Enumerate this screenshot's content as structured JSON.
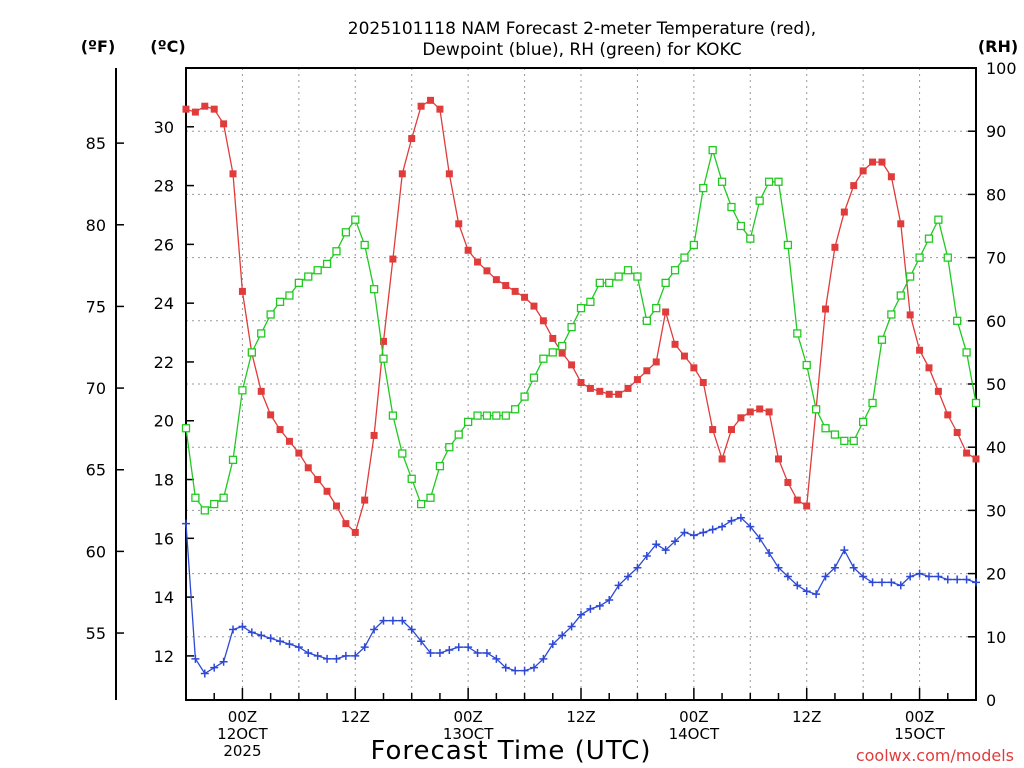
{
  "chart_data": {
    "type": "line",
    "title_line1": "2025101118 NAM Forecast 2-meter Temperature (red),",
    "title_line2": "Dewpoint (blue), RH (green) for KOKC",
    "xlabel": "Forecast Time (UTC)",
    "credit": "coolwx.com/models",
    "unit_f": "(ºF)",
    "unit_c": "(ºC)",
    "unit_rh": "(RH)",
    "x_hours_range": [
      18,
      102
    ],
    "ylim_c": [
      10.5,
      32.0
    ],
    "ylim_rh": [
      0,
      100
    ],
    "ticks_c": [
      "12",
      "14",
      "16",
      "18",
      "20",
      "22",
      "24",
      "26",
      "28",
      "30"
    ],
    "ticks_f": [
      "55",
      "60",
      "65",
      "70",
      "75",
      "80",
      "85"
    ],
    "ticks_rh": [
      "0",
      "10",
      "20",
      "30",
      "40",
      "50",
      "60",
      "70",
      "80",
      "90",
      "100"
    ],
    "x_ticks": [
      {
        "hour": 24,
        "label1": "00Z",
        "label2": "12OCT",
        "label3": "2025"
      },
      {
        "hour": 36,
        "label1": "12Z",
        "label2": "",
        "label3": ""
      },
      {
        "hour": 48,
        "label1": "00Z",
        "label2": "13OCT",
        "label3": ""
      },
      {
        "hour": 60,
        "label1": "12Z",
        "label2": "",
        "label3": ""
      },
      {
        "hour": 72,
        "label1": "00Z",
        "label2": "14OCT",
        "label3": ""
      },
      {
        "hour": 84,
        "label1": "12Z",
        "label2": "",
        "label3": ""
      },
      {
        "hour": 96,
        "label1": "00Z",
        "label2": "15OCT",
        "label3": ""
      }
    ],
    "grid": true,
    "series": [
      {
        "name": "Temperature",
        "color": "#e03c3c",
        "axis": "c",
        "marker": "filled-square",
        "x": [
          18,
          19,
          20,
          21,
          22,
          23,
          24,
          25,
          26,
          27,
          28,
          29,
          30,
          31,
          32,
          33,
          34,
          35,
          36,
          37,
          38,
          39,
          40,
          41,
          42,
          43,
          44,
          45,
          46,
          47,
          48,
          49,
          50,
          51,
          52,
          53,
          54,
          55,
          56,
          57,
          58,
          59,
          60,
          61,
          62,
          63,
          64,
          65,
          66,
          67,
          68,
          69,
          70,
          71,
          72,
          73,
          74,
          75,
          76,
          77,
          78,
          79,
          80,
          81,
          82,
          83,
          84,
          85,
          86,
          87,
          88,
          89,
          90,
          91,
          92,
          93,
          94,
          95,
          96,
          97,
          98,
          99,
          100,
          101,
          102
        ],
        "values": [
          30.6,
          30.5,
          30.7,
          30.6,
          30.1,
          28.4,
          24.4,
          22.3,
          21.0,
          20.2,
          19.7,
          19.3,
          18.9,
          18.4,
          18.0,
          17.6,
          17.1,
          16.5,
          16.2,
          17.3,
          19.5,
          22.7,
          25.5,
          28.4,
          29.6,
          30.7,
          30.9,
          30.6,
          28.4,
          26.7,
          25.8,
          25.4,
          25.1,
          24.8,
          24.6,
          24.4,
          24.2,
          23.9,
          23.4,
          22.8,
          22.3,
          21.9,
          21.3,
          21.1,
          21.0,
          20.9,
          20.9,
          21.1,
          21.4,
          21.7,
          22.0,
          23.7,
          22.6,
          22.2,
          21.8,
          21.3,
          19.7,
          18.7,
          19.7,
          20.1,
          20.3,
          20.4,
          20.3,
          18.7,
          17.9,
          17.3,
          17.1,
          20.4,
          23.8,
          25.9,
          27.1,
          28.0,
          28.5,
          28.8,
          28.8,
          28.3,
          26.7,
          23.6,
          22.4,
          21.8,
          21.0,
          20.2,
          19.6,
          18.9,
          18.7
        ]
      },
      {
        "name": "Dewpoint",
        "color": "#2e49d4",
        "axis": "c",
        "marker": "plus",
        "x": [
          18,
          19,
          20,
          21,
          22,
          23,
          24,
          25,
          26,
          27,
          28,
          29,
          30,
          31,
          32,
          33,
          34,
          35,
          36,
          37,
          38,
          39,
          40,
          41,
          42,
          43,
          44,
          45,
          46,
          47,
          48,
          49,
          50,
          51,
          52,
          53,
          54,
          55,
          56,
          57,
          58,
          59,
          60,
          61,
          62,
          63,
          64,
          65,
          66,
          67,
          68,
          69,
          70,
          71,
          72,
          73,
          74,
          75,
          76,
          77,
          78,
          79,
          80,
          81,
          82,
          83,
          84,
          85,
          86,
          87,
          88,
          89,
          90,
          91,
          92,
          93,
          94,
          95,
          96,
          97,
          98,
          99,
          100,
          101,
          102
        ],
        "values": [
          16.5,
          11.9,
          11.4,
          11.6,
          11.8,
          12.9,
          13.0,
          12.8,
          12.7,
          12.6,
          12.5,
          12.4,
          12.3,
          12.1,
          12.0,
          11.9,
          11.9,
          12.0,
          12.0,
          12.3,
          12.9,
          13.2,
          13.2,
          13.2,
          12.9,
          12.5,
          12.1,
          12.1,
          12.2,
          12.3,
          12.3,
          12.1,
          12.1,
          11.9,
          11.6,
          11.5,
          11.5,
          11.6,
          11.9,
          12.4,
          12.7,
          13.0,
          13.4,
          13.6,
          13.7,
          13.9,
          14.4,
          14.7,
          15.0,
          15.4,
          15.8,
          15.6,
          15.9,
          16.2,
          16.1,
          16.2,
          16.3,
          16.4,
          16.6,
          16.7,
          16.4,
          16.0,
          15.5,
          15.0,
          14.7,
          14.4,
          14.2,
          14.1,
          14.7,
          15.0,
          15.6,
          15.0,
          14.7,
          14.5,
          14.5,
          14.5,
          14.4,
          14.7,
          14.8,
          14.7,
          14.7,
          14.6,
          14.6,
          14.6,
          14.5
        ]
      },
      {
        "name": "RH",
        "color": "#22c922",
        "axis": "rh",
        "marker": "open-square",
        "x": [
          18,
          19,
          20,
          21,
          22,
          23,
          24,
          25,
          26,
          27,
          28,
          29,
          30,
          31,
          32,
          33,
          34,
          35,
          36,
          37,
          38,
          39,
          40,
          41,
          42,
          43,
          44,
          45,
          46,
          47,
          48,
          49,
          50,
          51,
          52,
          53,
          54,
          55,
          56,
          57,
          58,
          59,
          60,
          61,
          62,
          63,
          64,
          65,
          66,
          67,
          68,
          69,
          70,
          71,
          72,
          73,
          74,
          75,
          76,
          77,
          78,
          79,
          80,
          81,
          82,
          83,
          84,
          85,
          86,
          87,
          88,
          89,
          90,
          91,
          92,
          93,
          94,
          95,
          96,
          97,
          98,
          99,
          100,
          101,
          102
        ],
        "values": [
          43,
          32,
          30,
          31,
          32,
          38,
          49,
          55,
          58,
          61,
          63,
          64,
          66,
          67,
          68,
          69,
          71,
          74,
          76,
          72,
          65,
          54,
          45,
          39,
          35,
          31,
          32,
          37,
          40,
          42,
          44,
          45,
          45,
          45,
          45,
          46,
          48,
          51,
          54,
          55,
          56,
          59,
          62,
          63,
          66,
          66,
          67,
          68,
          67,
          60,
          62,
          66,
          68,
          70,
          72,
          81,
          87,
          82,
          78,
          75,
          73,
          79,
          82,
          82,
          72,
          58,
          53,
          46,
          43,
          42,
          41,
          41,
          44,
          47,
          57,
          61,
          64,
          67,
          70,
          73,
          76,
          70,
          60,
          55,
          47
        ]
      }
    ]
  }
}
